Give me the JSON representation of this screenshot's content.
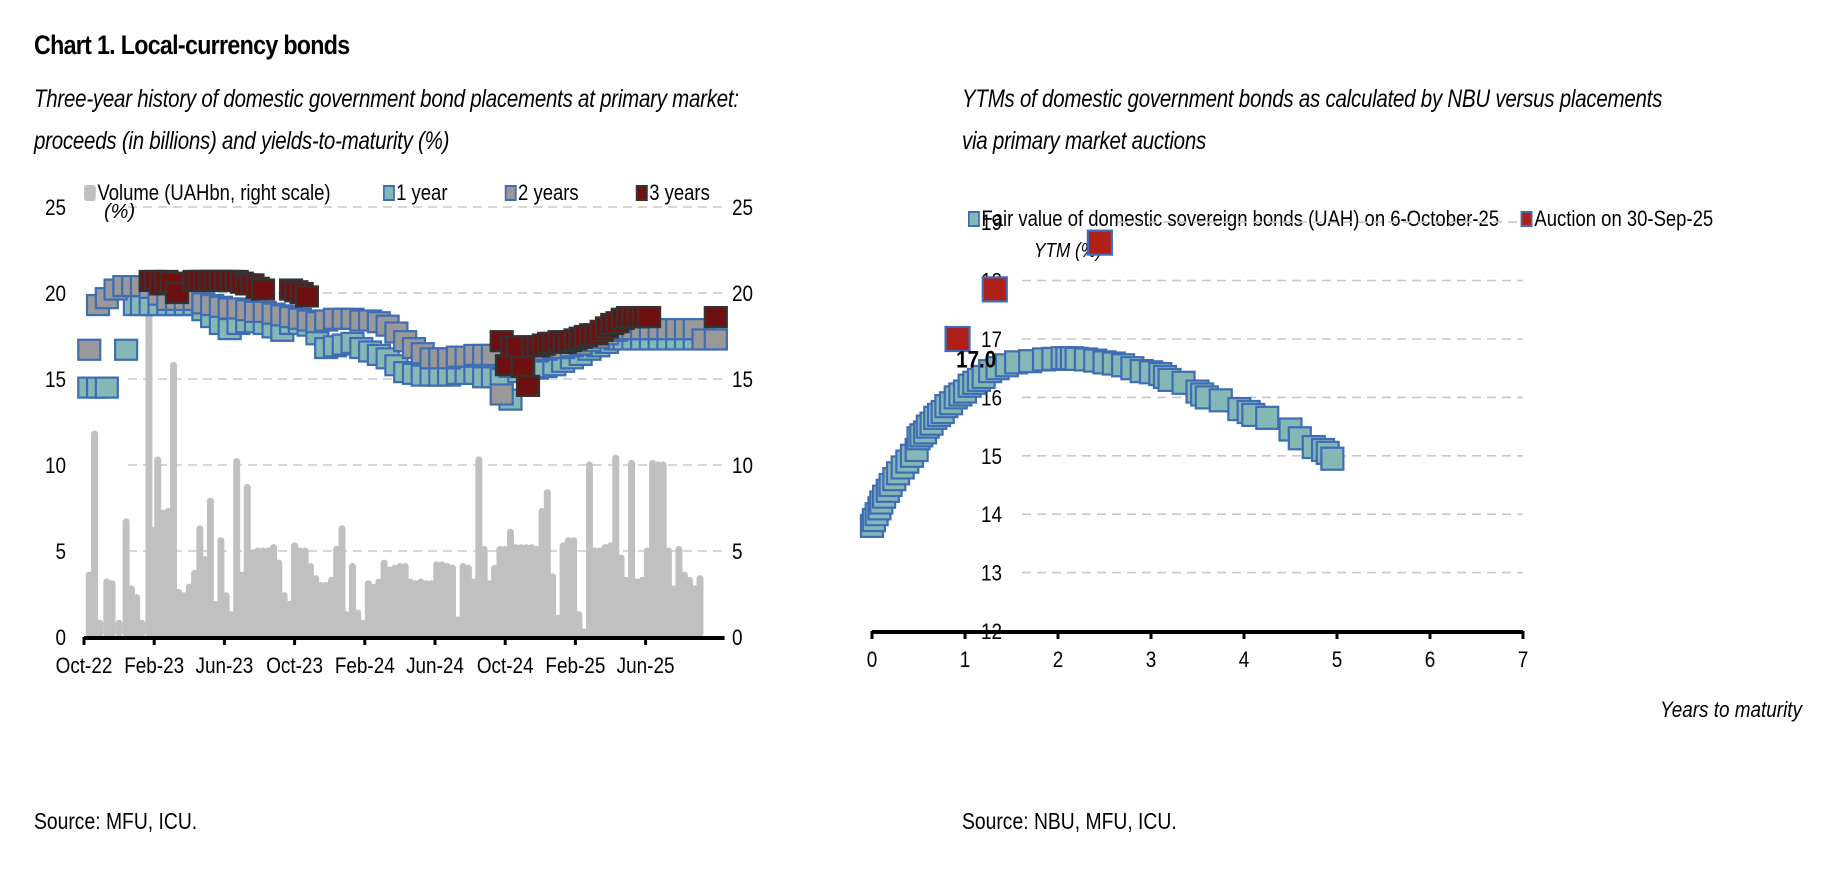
{
  "header": {
    "title": "Chart 1. Local-currency bonds"
  },
  "left_panel": {
    "subtitle_line1": "Three-year history of domestic government bond placements at primary market:",
    "subtitle_line2": "proceeds (in billions) and yields-to-maturity (%)",
    "source": "Source: MFU, ICU."
  },
  "right_panel": {
    "subtitle_line1_strong": "YTMs",
    "subtitle_line1_rest": " of domestic government bonds as calculated by NBU versus placements",
    "subtitle_line2": "via primary market auctions",
    "source": "Source: NBU, MFU, ICU."
  },
  "colors": {
    "volume_bar": "#c0c0c0",
    "one_year_fill": "#84b8b4",
    "two_year_fill": "#999999",
    "three_year_fill": "#6e1010",
    "marker_border_blue": "#3f6db5",
    "marker_border_dark": "#333333",
    "auction_fill": "#b02018",
    "grid": "#c8c8c8"
  },
  "chart_data": [
    {
      "type": "scatter",
      "title": "Three-year history of domestic government bond placements at primary market: proceeds (in billions) and yields-to-maturity (%)",
      "ylabel": "(%)",
      "ylim": [
        0,
        25
      ],
      "y_ticks": [
        0,
        5,
        10,
        15,
        20,
        25
      ],
      "y2label": "Volume (UAHbn, right scale)",
      "y2lim": [
        0,
        25
      ],
      "y2_ticks": [
        0,
        5,
        10,
        15,
        20,
        25
      ],
      "x_range_months": [
        0,
        36.5
      ],
      "x_ticks": [
        {
          "label": "Oct-22",
          "month": 0
        },
        {
          "label": "Feb-23",
          "month": 4
        },
        {
          "label": "Jun-23",
          "month": 8
        },
        {
          "label": "Oct-23",
          "month": 12
        },
        {
          "label": "Feb-24",
          "month": 16
        },
        {
          "label": "Jun-24",
          "month": 20
        },
        {
          "label": "Oct-24",
          "month": 24
        },
        {
          "label": "Feb-25",
          "month": 28
        },
        {
          "label": "Jun-25",
          "month": 32
        }
      ],
      "grid": true,
      "legend_position": "top",
      "legend": [
        "Volume (UAHbn, right scale)",
        "1 year",
        "2 years",
        "3 years"
      ],
      "series": [
        {
          "name": "Volume (UAHbn, right scale)",
          "kind": "bar",
          "axis": "right",
          "x_month": [
            0.3,
            0.6,
            0.9,
            1.3,
            1.6,
            2.0,
            2.4,
            2.7,
            3.0,
            3.3,
            3.7,
            4.0,
            4.2,
            4.5,
            4.8,
            5.1,
            5.4,
            5.7,
            6.0,
            6.3,
            6.6,
            6.9,
            7.2,
            7.5,
            7.8,
            8.1,
            8.4,
            8.7,
            9.0,
            9.3,
            9.6,
            9.9,
            10.2,
            10.5,
            10.8,
            11.1,
            11.4,
            11.7,
            12.0,
            12.3,
            12.6,
            12.9,
            13.2,
            13.5,
            13.8,
            14.1,
            14.4,
            14.7,
            15.0,
            15.3,
            15.6,
            15.9,
            16.2,
            16.5,
            16.8,
            17.1,
            17.4,
            17.7,
            18.0,
            18.3,
            18.6,
            18.9,
            19.2,
            19.5,
            19.8,
            20.1,
            20.4,
            20.7,
            21.0,
            21.3,
            21.6,
            21.9,
            22.2,
            22.5,
            22.8,
            23.1,
            23.4,
            23.7,
            24.0,
            24.3,
            24.6,
            24.9,
            25.2,
            25.5,
            25.8,
            26.1,
            26.4,
            26.7,
            27.0,
            27.3,
            27.6,
            27.9,
            28.2,
            28.5,
            28.8,
            29.1,
            29.4,
            29.7,
            30.0,
            30.3,
            30.6,
            30.9,
            31.2,
            31.5,
            31.8,
            32.1,
            32.4,
            32.7,
            33.0,
            33.3,
            33.6,
            33.9,
            34.2,
            34.5,
            34.8,
            35.1,
            35.4,
            35.7,
            36.0,
            36.3
          ],
          "values": [
            3.8,
            12.0,
            1.0,
            3.4,
            3.3,
            1.0,
            6.9,
            3.0,
            2.5,
            1.0,
            21.0,
            6.4,
            10.5,
            7.4,
            7.5,
            16.0,
            2.8,
            2.6,
            3.1,
            3.9,
            6.5,
            4.7,
            8.1,
            2.1,
            5.8,
            2.6,
            1.5,
            10.4,
            3.8,
            8.9,
            5.1,
            5.2,
            5.2,
            5.2,
            5.4,
            4.5,
            2.6,
            2.1,
            5.5,
            5.2,
            5.2,
            4.3,
            3.6,
            3.2,
            3.2,
            3.5,
            5.3,
            6.5,
            1.5,
            4.3,
            1.6,
            1.0,
            3.3,
            3.1,
            3.4,
            4.5,
            4.1,
            4.2,
            4.3,
            4.3,
            3.4,
            3.3,
            3.4,
            3.3,
            3.3,
            4.4,
            4.4,
            4.3,
            4.2,
            1.2,
            4.3,
            4.2,
            3.4,
            10.5,
            5.3,
            3.3,
            4.2,
            5.3,
            5.3,
            6.3,
            5.4,
            5.4,
            5.4,
            5.4,
            5.3,
            7.5,
            8.6,
            3.7,
            1.3,
            5.5,
            5.8,
            5.8,
            1.5,
            0.5,
            10.2,
            5.2,
            5.2,
            5.4,
            5.5,
            10.6,
            4.8,
            3.5,
            10.3,
            3.4,
            3.5,
            5.2,
            10.3,
            10.2,
            10.2,
            5.2,
            3.0,
            5.3,
            3.8,
            3.5,
            3.0,
            3.6
          ]
        },
        {
          "name": "1 year",
          "kind": "marker",
          "x_month": [
            0.3,
            0.8,
            1.3,
            2.4,
            2.9,
            3.3,
            3.8,
            4.3,
            4.8,
            5.3,
            5.8,
            6.3,
            6.8,
            7.3,
            7.8,
            8.3,
            8.8,
            9.3,
            9.8,
            10.3,
            10.8,
            11.3,
            11.8,
            12.3,
            12.8,
            13.3,
            13.8,
            14.3,
            14.8,
            15.3,
            15.8,
            16.3,
            16.8,
            17.3,
            17.8,
            18.3,
            18.8,
            19.3,
            19.8,
            20.3,
            20.8,
            21.3,
            21.8,
            22.3,
            22.8,
            23.3,
            23.8,
            24.3,
            24.8,
            25.3,
            25.8,
            26.3,
            26.8,
            27.3,
            27.8,
            28.3,
            28.8,
            29.3,
            29.8,
            30.3,
            30.8,
            31.3,
            31.8,
            32.3,
            32.8,
            33.3,
            33.8,
            34.3,
            34.8,
            35.3,
            36.0
          ],
          "values": [
            14.5,
            14.5,
            14.5,
            16.7,
            19.3,
            19.3,
            19.3,
            19.3,
            19.3,
            19.3,
            19.3,
            19.3,
            19.0,
            18.6,
            18.2,
            17.9,
            18.2,
            18.3,
            18.3,
            18.2,
            18.0,
            17.8,
            18.2,
            18.2,
            18.1,
            17.6,
            16.8,
            16.9,
            17.0,
            17.1,
            16.8,
            16.6,
            16.4,
            16.2,
            15.8,
            15.4,
            15.3,
            15.2,
            15.2,
            15.2,
            15.2,
            15.3,
            15.3,
            15.3,
            15.1,
            15.1,
            15.0,
            13.8,
            15.4,
            15.6,
            15.6,
            15.7,
            15.8,
            16.0,
            16.2,
            16.4,
            16.7,
            16.9,
            17.1,
            17.3,
            17.3,
            17.3,
            17.3,
            17.3,
            17.3,
            17.3,
            17.3,
            17.3,
            17.3,
            17.3,
            17.3
          ]
        },
        {
          "name": "2 years",
          "kind": "marker",
          "x_month": [
            0.3,
            0.8,
            1.3,
            1.8,
            2.3,
            2.8,
            3.3,
            3.8,
            4.3,
            4.8,
            5.3,
            5.8,
            6.3,
            6.8,
            7.3,
            7.8,
            8.3,
            8.8,
            9.3,
            9.8,
            10.3,
            10.8,
            11.3,
            11.8,
            12.3,
            12.8,
            13.3,
            13.8,
            14.3,
            14.8,
            15.3,
            15.8,
            16.3,
            16.8,
            17.3,
            17.8,
            18.3,
            18.8,
            19.3,
            19.8,
            20.3,
            20.8,
            21.3,
            21.8,
            22.3,
            22.8,
            23.3,
            23.8,
            24.3,
            24.8,
            25.3,
            25.8,
            26.3,
            26.8,
            27.3,
            27.8,
            28.3,
            28.8,
            29.3,
            29.8,
            30.3,
            30.8,
            31.3,
            31.8,
            32.3,
            32.8,
            33.3,
            33.8,
            34.3,
            34.8,
            35.3,
            36.0
          ],
          "values": [
            16.7,
            19.3,
            19.7,
            20.2,
            20.4,
            20.4,
            20.4,
            20.3,
            19.9,
            19.6,
            19.6,
            19.6,
            19.6,
            19.4,
            19.3,
            19.2,
            19.1,
            19.1,
            19.0,
            18.9,
            18.9,
            18.8,
            18.7,
            18.6,
            18.5,
            18.4,
            18.3,
            18.4,
            18.5,
            18.5,
            18.5,
            18.4,
            18.4,
            18.3,
            18.1,
            17.7,
            17.2,
            16.8,
            16.5,
            16.2,
            16.2,
            16.2,
            16.3,
            16.3,
            16.4,
            16.4,
            16.4,
            14.1,
            15.7,
            16.5,
            16.6,
            16.6,
            16.7,
            16.8,
            16.8,
            16.9,
            17.0,
            17.2,
            17.4,
            17.6,
            17.8,
            17.9,
            17.9,
            17.9,
            17.9,
            17.9,
            17.9,
            17.9,
            17.9,
            17.9,
            17.3,
            17.3
          ]
        },
        {
          "name": "3 years",
          "kind": "marker",
          "x_month": [
            3.8,
            4.1,
            4.4,
            4.7,
            5.0,
            5.3,
            6.3,
            6.6,
            6.9,
            7.2,
            7.5,
            7.8,
            8.1,
            8.4,
            8.7,
            9.0,
            9.3,
            9.6,
            9.9,
            10.2,
            11.8,
            12.1,
            12.4,
            12.7,
            23.8,
            24.1,
            24.4,
            24.7,
            25.0,
            25.3,
            25.6,
            25.9,
            26.2,
            26.5,
            26.8,
            27.1,
            27.4,
            27.7,
            28.0,
            28.3,
            28.6,
            28.9,
            29.2,
            29.5,
            29.8,
            30.1,
            30.4,
            30.7,
            31.0,
            31.3,
            31.6,
            31.9,
            32.2,
            36.0
          ],
          "values": [
            20.7,
            20.7,
            20.5,
            20.7,
            20.6,
            20.0,
            20.7,
            20.7,
            20.7,
            20.7,
            20.7,
            20.7,
            20.7,
            20.7,
            20.7,
            20.6,
            20.5,
            20.5,
            20.3,
            20.2,
            20.2,
            20.1,
            20.0,
            19.8,
            17.2,
            15.8,
            16.9,
            16.9,
            15.7,
            14.6,
            16.9,
            16.9,
            17.0,
            17.1,
            17.1,
            17.2,
            17.1,
            17.2,
            17.3,
            17.4,
            17.5,
            17.6,
            17.6,
            17.8,
            18.0,
            18.2,
            18.3,
            18.5,
            18.6,
            18.6,
            18.6,
            18.6,
            18.6,
            18.6
          ]
        }
      ]
    },
    {
      "type": "scatter",
      "title": "YTMs of domestic government bonds as calculated by NBU versus placements via primary market auctions",
      "xlabel": "Years to maturity",
      "ylabel": "YTM (%)",
      "xlim": [
        0,
        7
      ],
      "ylim": [
        12,
        19
      ],
      "x_ticks": [
        0,
        1,
        2,
        3,
        4,
        5,
        6,
        7
      ],
      "y_ticks": [
        12,
        13,
        14,
        15,
        16,
        17,
        18,
        19
      ],
      "grid": true,
      "legend_position": "top",
      "legend": [
        "Fair value of domestic sovereign bonds (UAH) on 6-October-25",
        "Auction on 30-Sep-25"
      ],
      "annotations": [
        {
          "text": "17.0",
          "x": 1.27,
          "y": 16.65
        }
      ],
      "series": [
        {
          "name": "Fair value of domestic sovereign bonds (UAH) on 6-October-25",
          "x": [
            0.0,
            0.02,
            0.05,
            0.08,
            0.1,
            0.13,
            0.17,
            0.2,
            0.24,
            0.28,
            0.33,
            0.38,
            0.43,
            0.48,
            0.5,
            0.53,
            0.57,
            0.6,
            0.64,
            0.68,
            0.72,
            0.76,
            0.8,
            0.85,
            0.9,
            0.95,
            1.0,
            1.05,
            1.1,
            1.15,
            1.2,
            1.27,
            1.35,
            1.45,
            1.55,
            1.7,
            1.85,
            1.95,
            2.05,
            2.1,
            2.15,
            2.2,
            2.3,
            2.4,
            2.5,
            2.6,
            2.7,
            2.8,
            2.9,
            3.0,
            3.1,
            3.15,
            3.2,
            3.35,
            3.5,
            3.55,
            3.6,
            3.75,
            3.95,
            4.05,
            4.1,
            4.25,
            4.5,
            4.6,
            4.75,
            4.85,
            4.9,
            4.95
          ],
          "values": [
            13.8,
            13.9,
            14.0,
            14.1,
            14.2,
            14.3,
            14.4,
            14.5,
            14.6,
            14.7,
            14.8,
            14.9,
            15.0,
            15.1,
            15.3,
            15.35,
            15.4,
            15.5,
            15.55,
            15.65,
            15.7,
            15.75,
            15.85,
            15.9,
            16.0,
            16.05,
            16.1,
            16.2,
            16.25,
            16.3,
            16.35,
            16.45,
            16.5,
            16.55,
            16.6,
            16.62,
            16.65,
            16.66,
            16.67,
            16.67,
            16.67,
            16.66,
            16.65,
            16.63,
            16.6,
            16.58,
            16.55,
            16.5,
            16.45,
            16.43,
            16.4,
            16.35,
            16.3,
            16.25,
            16.1,
            16.05,
            16.0,
            15.95,
            15.8,
            15.75,
            15.7,
            15.65,
            15.45,
            15.3,
            15.15,
            15.1,
            15.05,
            14.95
          ]
        },
        {
          "name": "Auction on 30-Sep-25",
          "x": [
            0.92,
            1.32,
            2.45
          ],
          "values": [
            17.0,
            17.85,
            18.65
          ]
        }
      ]
    }
  ]
}
